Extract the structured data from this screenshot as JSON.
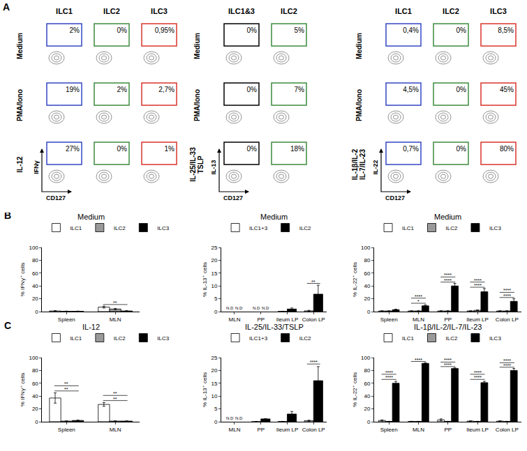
{
  "figure_labels": [
    "A",
    "B",
    "C"
  ],
  "flow_cytometry": {
    "groups": [
      {
        "columns": [
          {
            "name": "ILC1",
            "color": "#3346c4"
          },
          {
            "name": "ILC2",
            "color": "#3d8b3d"
          },
          {
            "name": "ILC3",
            "color": "#d9342b"
          }
        ],
        "rows": [
          [
            "Medium"
          ],
          [
            "PMA/Iono"
          ],
          [
            "IL-12"
          ]
        ],
        "y_label": "IFNγ",
        "x_label": "CD127",
        "values": [
          [
            {
              "value": 2,
              "label": "2%"
            },
            {
              "value": 0,
              "label": "0%"
            },
            {
              "value": 0.95,
              "label": "0,95%"
            }
          ],
          [
            {
              "value": 19,
              "label": "19%"
            },
            {
              "value": 2,
              "label": "2%"
            },
            {
              "value": 2.7,
              "label": "2,7%"
            }
          ],
          [
            {
              "value": 27,
              "label": "27%"
            },
            {
              "value": 0,
              "label": "0%"
            },
            {
              "value": 1,
              "label": "1%"
            }
          ]
        ]
      },
      {
        "columns": [
          {
            "name": "ILC1&3",
            "color": "#000000"
          },
          {
            "name": "ILC2",
            "color": "#3d8b3d"
          }
        ],
        "rows": [
          [
            "Medium"
          ],
          [
            "PMA/Iono"
          ],
          [
            "IL-25/IL-33",
            "TSLP"
          ]
        ],
        "y_label": "IL-13",
        "x_label": "CD127",
        "values": [
          [
            {
              "value": 0,
              "label": "0%"
            },
            {
              "value": 5,
              "label": "5%"
            }
          ],
          [
            {
              "value": 0,
              "label": "0%"
            },
            {
              "value": 7,
              "label": "7%"
            }
          ],
          [
            {
              "value": 0,
              "label": "0%"
            },
            {
              "value": 18,
              "label": "18%"
            }
          ]
        ]
      },
      {
        "columns": [
          {
            "name": "ILC1",
            "color": "#3346c4"
          },
          {
            "name": "ILC2",
            "color": "#3d8b3d"
          },
          {
            "name": "ILC3",
            "color": "#d9342b"
          }
        ],
        "rows": [
          [
            "Medium"
          ],
          [
            "PMA/Iono"
          ],
          [
            "IL-1β/IL-2",
            "IL-7/IL-23"
          ]
        ],
        "y_label": "IL-22",
        "x_label": "CD127",
        "values": [
          [
            {
              "value": 0.4,
              "label": "0,4%"
            },
            {
              "value": 0,
              "label": "0%"
            },
            {
              "value": 8.5,
              "label": "8,5%"
            }
          ],
          [
            {
              "value": 4.5,
              "label": "4,5%"
            },
            {
              "value": 0,
              "label": "0%"
            },
            {
              "value": 45,
              "label": "45%"
            }
          ],
          [
            {
              "value": 0.7,
              "label": "0,7%"
            },
            {
              "value": 0,
              "label": "0%"
            },
            {
              "value": 80,
              "label": "80%"
            }
          ]
        ]
      }
    ]
  },
  "chart_data": [
    {
      "type": "bar",
      "title": "Medium",
      "categories": [
        "Spleen",
        "MLN"
      ],
      "series": [
        {
          "name": "ILC1",
          "color": "#ffffff",
          "values": [
            1,
            7
          ],
          "errors": [
            0.5,
            1.5
          ]
        },
        {
          "name": "ILC2",
          "color": "#999999",
          "values": [
            0.5,
            4
          ],
          "errors": [
            0.3,
            1
          ]
        },
        {
          "name": "ILC3",
          "color": "#000000",
          "values": [
            0.5,
            1
          ],
          "errors": [
            0.3,
            0.5
          ]
        }
      ],
      "y_label": "% IFNγ⁺ cells",
      "ylim": [
        0,
        100
      ],
      "yticks": [
        0,
        20,
        40,
        60,
        80,
        100
      ],
      "legend": "top",
      "significance": [
        {
          "category": "MLN",
          "y": 11,
          "text": "**"
        }
      ]
    },
    {
      "type": "bar",
      "title": "Medium",
      "categories": [
        "MLN",
        "PP",
        "Ileum LP",
        "Colon LP"
      ],
      "series": [
        {
          "name": "ILC1+3",
          "color": "#ffffff",
          "values": [
            null,
            null,
            0.1,
            0.3
          ],
          "value_labels": [
            "N.D",
            "N.D",
            null,
            null
          ],
          "errors": [
            null,
            null,
            0.05,
            0.2
          ]
        },
        {
          "name": "ILC2",
          "color": "#000000",
          "values": [
            null,
            null,
            1,
            6.8
          ],
          "value_labels": [
            "N.D",
            "N.D",
            null,
            null
          ],
          "errors": [
            null,
            null,
            0.4,
            3.5
          ]
        }
      ],
      "y_label": "% IL-13⁺ cells",
      "ylim": [
        0,
        25
      ],
      "yticks": [
        0,
        5,
        10,
        15,
        20,
        25
      ],
      "legend": "top",
      "significance": [
        {
          "category": "Colon LP",
          "y": 11,
          "text": "**"
        }
      ]
    },
    {
      "type": "bar",
      "title": "Medium",
      "categories": [
        "Spleen",
        "MLN",
        "PP",
        "Ileum LP",
        "Colon LP"
      ],
      "series": [
        {
          "name": "ILC1",
          "color": "#ffffff",
          "values": [
            1,
            1,
            1,
            1,
            1
          ],
          "errors": [
            0.3,
            0.3,
            0.3,
            0.3,
            0.3
          ]
        },
        {
          "name": "ILC2",
          "color": "#999999",
          "values": [
            1,
            1,
            1,
            2,
            1
          ],
          "errors": [
            0.3,
            0.3,
            0.3,
            0.5,
            0.3
          ]
        },
        {
          "name": "ILC3",
          "color": "#000000",
          "values": [
            3,
            9,
            40,
            31,
            16
          ],
          "errors": [
            0.8,
            1.5,
            4,
            5,
            4
          ]
        }
      ],
      "y_label": "% IL-22⁺ cells",
      "ylim": [
        0,
        100
      ],
      "yticks": [
        0,
        20,
        40,
        60,
        80,
        100
      ],
      "legend": "top",
      "significance": [
        {
          "category": "MLN",
          "y": 13,
          "text": "*"
        },
        {
          "category": "MLN",
          "y": 21,
          "text": "****"
        },
        {
          "category": "PP",
          "y": 46,
          "text": "****"
        },
        {
          "category": "PP",
          "y": 54,
          "text": "****"
        },
        {
          "category": "Ileum LP",
          "y": 38,
          "text": "****"
        },
        {
          "category": "Ileum LP",
          "y": 46,
          "text": "****"
        },
        {
          "category": "Colon LP",
          "y": 22,
          "text": "****"
        },
        {
          "category": "Colon LP",
          "y": 30,
          "text": "****"
        }
      ]
    },
    {
      "type": "bar",
      "title": "IL-12",
      "categories": [
        "Spleen",
        "MLN"
      ],
      "series": [
        {
          "name": "ILC1",
          "color": "#ffffff",
          "values": [
            37,
            27
          ],
          "errors": [
            8,
            3
          ]
        },
        {
          "name": "ILC2",
          "color": "#999999",
          "values": [
            1,
            1
          ],
          "errors": [
            0.3,
            0.3
          ]
        },
        {
          "name": "ILC3",
          "color": "#000000",
          "values": [
            2,
            1
          ],
          "errors": [
            0.5,
            0.3
          ]
        }
      ],
      "y_label": "% IFNγ⁺ cells",
      "ylim": [
        0,
        100
      ],
      "yticks": [
        0,
        20,
        40,
        60,
        80,
        100
      ],
      "legend": "top",
      "significance": [
        {
          "category": "Spleen",
          "y": 48,
          "text": "**"
        },
        {
          "category": "Spleen",
          "y": 56,
          "text": "**"
        },
        {
          "category": "MLN",
          "y": 33,
          "text": "**"
        },
        {
          "category": "MLN",
          "y": 41,
          "text": "**"
        }
      ]
    },
    {
      "type": "bar",
      "title": "IL-25/IL-33/TSLP",
      "categories": [
        "MLN",
        "PP",
        "Ileum LP",
        "Colon LP"
      ],
      "series": [
        {
          "name": "ILC1+3",
          "color": "#ffffff",
          "values": [
            null,
            0.05,
            0.1,
            0.4
          ],
          "value_labels": [
            "N.D",
            null,
            null,
            null
          ],
          "errors": [
            null,
            0.02,
            0.05,
            0.2
          ]
        },
        {
          "name": "ILC2",
          "color": "#000000",
          "values": [
            null,
            1.1,
            3,
            16
          ],
          "value_labels": [
            "N.D",
            null,
            null,
            null
          ],
          "errors": [
            null,
            0.1,
            1,
            5.5
          ]
        }
      ],
      "y_label": "% IL-13⁺ cells",
      "ylim": [
        0,
        25
      ],
      "yticks": [
        0,
        5,
        10,
        15,
        20,
        25
      ],
      "legend": "top",
      "significance": [
        {
          "category": "Colon LP",
          "y": 22.5,
          "text": "****"
        }
      ]
    },
    {
      "type": "bar",
      "title": "IL-1β/IL-2/IL-7/IL-23",
      "categories": [
        "Spleen",
        "MLN",
        "PP",
        "Ileum LP",
        "Colon LP"
      ],
      "series": [
        {
          "name": "ILC1",
          "color": "#ffffff",
          "values": [
            2,
            0.5,
            3,
            1,
            1
          ],
          "errors": [
            0.8,
            0.2,
            1.5,
            0.3,
            0.3
          ]
        },
        {
          "name": "ILC2",
          "color": "#999999",
          "values": [
            0.5,
            0.5,
            0.5,
            0.5,
            0.5
          ],
          "errors": [
            0.2,
            0.2,
            0.2,
            0.2,
            0.2
          ]
        },
        {
          "name": "ILC3",
          "color": "#000000",
          "values": [
            60,
            91,
            83,
            61,
            80
          ],
          "errors": [
            3,
            1,
            1,
            2,
            3
          ]
        }
      ],
      "y_label": "% IL-22⁺ cells",
      "ylim": [
        0,
        100
      ],
      "yticks": [
        0,
        20,
        40,
        60,
        80,
        100
      ],
      "legend": "top",
      "significance": [
        {
          "category": "Spleen",
          "y": 66,
          "text": "****"
        },
        {
          "category": "Spleen",
          "y": 74,
          "text": "****"
        },
        {
          "category": "MLN",
          "y": 94,
          "text": "****"
        },
        {
          "category": "MLN",
          "y": 101,
          "text": "****"
        },
        {
          "category": "PP",
          "y": 86,
          "text": "****"
        },
        {
          "category": "PP",
          "y": 93,
          "text": "****"
        },
        {
          "category": "Ileum LP",
          "y": 66,
          "text": "****"
        },
        {
          "category": "Ileum LP",
          "y": 74,
          "text": "****"
        },
        {
          "category": "Colon LP",
          "y": 85,
          "text": "****"
        },
        {
          "category": "Colon LP",
          "y": 92,
          "text": "****"
        }
      ]
    }
  ]
}
